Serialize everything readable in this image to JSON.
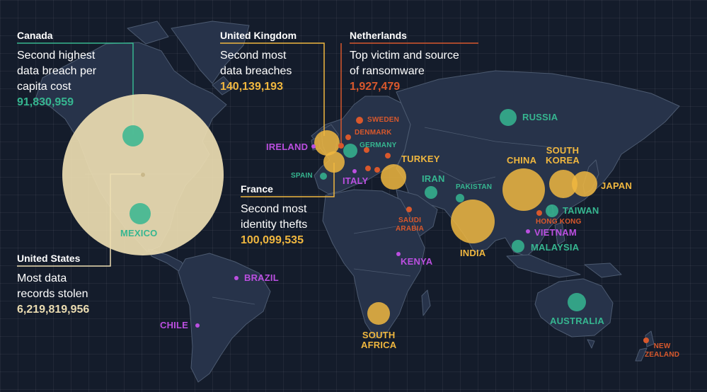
{
  "colors": {
    "background": "#141c2b",
    "land": "#27334a",
    "border": "#4c5a70",
    "yellow": "#f0b73f",
    "green": "#36b690",
    "purple": "#bb4fe0",
    "orange": "#d8582c",
    "cream": "#ebdcb1"
  },
  "callouts": {
    "canada": {
      "title": "Canada",
      "desc": [
        "Second highest",
        "data breach per",
        "capita cost"
      ],
      "value": "91,830,959",
      "value_color": "#36b690"
    },
    "uk": {
      "title": "United Kingdom",
      "desc": [
        "Second most",
        "data breaches"
      ],
      "value": "140,139,193",
      "value_color": "#f0b73f"
    },
    "netherlands": {
      "title": "Netherlands",
      "desc": [
        "Top victim and source",
        "of ransomware"
      ],
      "value": "1,927,479",
      "value_color": "#d8582c"
    },
    "france": {
      "title": "France",
      "desc": [
        "Second most",
        "identity thefts"
      ],
      "value": "100,099,535",
      "value_color": "#f0b73f"
    },
    "usa": {
      "title": "United States",
      "desc": [
        "Most data",
        "records stolen"
      ],
      "value": "6,219,819,956",
      "value_color": "#ebdcb1"
    }
  },
  "labels": {
    "russia": "RUSSIA",
    "sweden": "SWEDEN",
    "denmark": "DENMARK",
    "germany": "GERMANY",
    "ireland": "IRELAND",
    "spain": "SPAIN",
    "italy": "ITALY",
    "turkey": "TURKEY",
    "iran": "IRAN",
    "pakistan": "PAKISTAN",
    "china": "CHINA",
    "south_korea": [
      "SOUTH",
      "KOREA"
    ],
    "japan": "JAPAN",
    "taiwan": "TAIWAN",
    "hong_kong": "HONG KONG",
    "vietnam": "VIETNAM",
    "malaysia": "MALAYSIA",
    "india": "INDIA",
    "saudi_arabia": [
      "SAUDI",
      "ARABIA"
    ],
    "kenya": "KENYA",
    "south_africa": [
      "SOUTH",
      "AFRICA"
    ],
    "australia": "AUSTRALIA",
    "new_zealand": [
      "NEW",
      "ZEALAND"
    ],
    "brazil": "BRAZIL",
    "chile": "CHILE",
    "mexico": "MEXICO"
  }
}
